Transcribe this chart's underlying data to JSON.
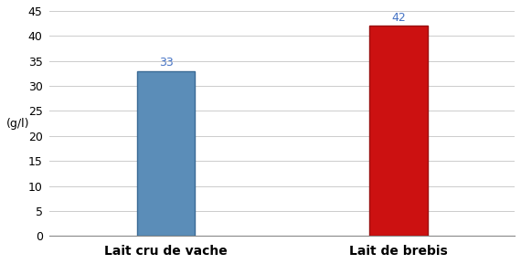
{
  "categories": [
    "Lait cru de vache",
    "Lait de brebis"
  ],
  "values": [
    33,
    42
  ],
  "bar_colors": [
    "#5B8DB8",
    "#CC1111"
  ],
  "bar_edge_colors": [
    "#3A6A95",
    "#991111"
  ],
  "bar_labels": [
    "33",
    "42"
  ],
  "label_color": "#4472C4",
  "ylabel": "(g/l)",
  "ylim": [
    0,
    45
  ],
  "yticks": [
    0,
    5,
    10,
    15,
    20,
    25,
    30,
    35,
    40,
    45
  ],
  "background_color": "#FFFFFF",
  "grid_color": "#CCCCCC",
  "bar_width": 0.25,
  "x_positions": [
    1,
    2
  ],
  "xlim": [
    0.5,
    2.5
  ],
  "label_fontsize": 9,
  "tick_fontsize": 9,
  "xlabel_fontsize": 10,
  "ylabel_fontsize": 9
}
